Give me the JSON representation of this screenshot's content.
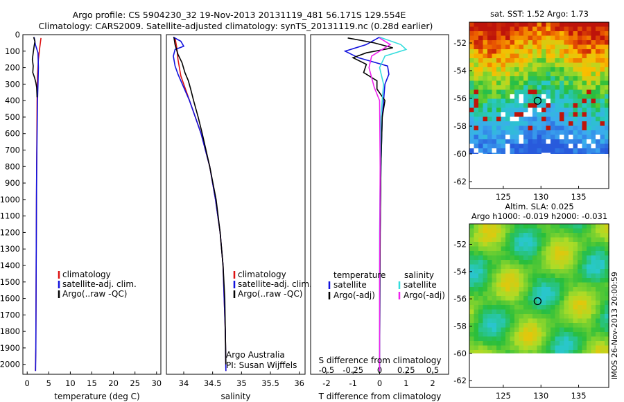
{
  "header": {
    "line1": "Argo profile: CS 5904230_32 19-Nov-2013 20131119_481 56.171S 129.554E",
    "line2": "Climatology: CARS2009. Satellite-adjusted climatology: synTS_20131119.nc (0.28d earlier)"
  },
  "footer": {
    "side_text": "IMOS 26-Nov-2013 20:00:59",
    "argo_australia": "Argo Australia",
    "pi": "PI: Susan Wijffels"
  },
  "colors": {
    "climatology": "#dd1111",
    "satellite": "#1111dd",
    "argo": "#000000",
    "satellite_salinity": "#33dddd",
    "argo_adj_salinity": "#ee22ee"
  },
  "chart_data": [
    {
      "id": "temperature",
      "type": "line",
      "xlabel": "temperature (deg C)",
      "ylabel": "",
      "xlim": [
        -1,
        31
      ],
      "ylim": [
        2060,
        0
      ],
      "xticks": [
        0,
        5,
        10,
        15,
        20,
        25,
        30
      ],
      "yticks": [
        0,
        100,
        200,
        300,
        400,
        500,
        600,
        700,
        800,
        900,
        1000,
        1100,
        1200,
        1300,
        1400,
        1500,
        1600,
        1700,
        1800,
        1900,
        2000
      ],
      "legend": [
        "climatology",
        "satellite-adj. clim.",
        "Argo(..raw -QC)"
      ],
      "series": [
        {
          "name": "climatology",
          "color": "#dd1111",
          "points": [
            [
              3.2,
              20
            ],
            [
              2.9,
              80
            ],
            [
              2.6,
              150
            ],
            [
              2.4,
              250
            ],
            [
              2.3,
              400
            ],
            [
              2.25,
              600
            ],
            [
              2.2,
              800
            ],
            [
              2.15,
              1000
            ],
            [
              2.1,
              1300
            ],
            [
              2.05,
              1600
            ],
            [
              2.0,
              1900
            ],
            [
              1.9,
              2040
            ]
          ]
        },
        {
          "name": "satellite-adj. clim.",
          "color": "#1111dd",
          "points": [
            [
              1.6,
              15
            ],
            [
              1.9,
              60
            ],
            [
              2.5,
              110
            ],
            [
              2.6,
              200
            ],
            [
              2.5,
              300
            ],
            [
              2.4,
              400
            ],
            [
              2.3,
              600
            ],
            [
              2.2,
              800
            ],
            [
              2.15,
              1000
            ],
            [
              2.1,
              1300
            ],
            [
              2.05,
              1600
            ],
            [
              2.0,
              1900
            ],
            [
              1.95,
              2040
            ]
          ]
        },
        {
          "name": "Argo(..raw -QC)",
          "color": "#000000",
          "points": [
            [
              1.5,
              15
            ],
            [
              1.8,
              40
            ],
            [
              1.6,
              70
            ],
            [
              1.4,
              110
            ],
            [
              1.2,
              150
            ],
            [
              1.4,
              190
            ],
            [
              1.3,
              230
            ],
            [
              1.7,
              260
            ],
            [
              2.0,
              290
            ],
            [
              2.2,
              320
            ],
            [
              2.3,
              380
            ]
          ]
        }
      ]
    },
    {
      "id": "salinity",
      "type": "line",
      "xlabel": "salinity",
      "ylabel": "",
      "xlim": [
        33.7,
        36.1
      ],
      "ylim": [
        2060,
        0
      ],
      "xticks": [
        34,
        34.5,
        35,
        35.5,
        36
      ],
      "xticklabels": [
        "34",
        "34.5",
        "35",
        "35.5",
        "36"
      ],
      "legend": [
        "climatology",
        "satellite-adj. clim.",
        "Argo(..raw -QC)"
      ],
      "series": [
        {
          "name": "climatology",
          "color": "#dd1111",
          "points": [
            [
              33.85,
              20
            ],
            [
              33.88,
              80
            ],
            [
              33.9,
              150
            ],
            [
              33.95,
              250
            ],
            [
              34.05,
              350
            ],
            [
              34.15,
              450
            ],
            [
              34.3,
              600
            ],
            [
              34.45,
              800
            ],
            [
              34.55,
              1000
            ],
            [
              34.63,
              1200
            ],
            [
              34.68,
              1400
            ],
            [
              34.7,
              1600
            ],
            [
              34.72,
              1800
            ],
            [
              34.73,
              2040
            ]
          ]
        },
        {
          "name": "satellite-adj. clim.",
          "color": "#1111dd",
          "points": [
            [
              33.82,
              15
            ],
            [
              33.95,
              40
            ],
            [
              34.0,
              70
            ],
            [
              33.85,
              90
            ],
            [
              33.82,
              130
            ],
            [
              33.85,
              190
            ],
            [
              33.9,
              240
            ],
            [
              34.0,
              320
            ],
            [
              34.1,
              400
            ],
            [
              34.2,
              500
            ],
            [
              34.3,
              600
            ],
            [
              34.45,
              800
            ],
            [
              34.55,
              1000
            ],
            [
              34.63,
              1200
            ],
            [
              34.68,
              1400
            ],
            [
              34.7,
              1600
            ],
            [
              34.72,
              1800
            ],
            [
              34.73,
              2040
            ]
          ]
        },
        {
          "name": "Argo(..raw -QC)",
          "color": "#000000",
          "points": [
            [
              33.83,
              15
            ],
            [
              33.85,
              60
            ],
            [
              33.9,
              120
            ],
            [
              33.97,
              170
            ],
            [
              34.02,
              230
            ],
            [
              34.08,
              280
            ],
            [
              34.12,
              330
            ],
            [
              34.17,
              400
            ],
            [
              34.25,
              500
            ],
            [
              34.32,
              600
            ],
            [
              34.45,
              800
            ],
            [
              34.56,
              1000
            ],
            [
              34.63,
              1200
            ],
            [
              34.68,
              1400
            ],
            [
              34.71,
              1600
            ],
            [
              34.72,
              1800
            ],
            [
              34.73,
              2000
            ]
          ]
        }
      ]
    },
    {
      "id": "difference",
      "type": "line",
      "xlabel": "T difference from climatology",
      "top_label": "S difference from climatology",
      "xlim": [
        -2.6,
        2.6
      ],
      "ylim": [
        2060,
        0
      ],
      "xticks": [
        -2,
        -1,
        0,
        1,
        2
      ],
      "top_xticks": [
        -0.5,
        -0.25,
        0,
        0.25,
        0.5
      ],
      "top_xticklabels": [
        "-0.5",
        "-0.25",
        "0",
        "0.25",
        "0.5"
      ],
      "legend_left_title": "temperature",
      "legend_right_title": "salinity",
      "legend_left": [
        "satellite",
        "Argo(-adj)"
      ],
      "legend_right": [
        "satellite",
        "Argo(-adj)"
      ],
      "series": [
        {
          "name": "T satellite",
          "color": "#1111dd",
          "points": [
            [
              0.0,
              15
            ],
            [
              -0.5,
              60
            ],
            [
              -1.3,
              100
            ],
            [
              -0.8,
              140
            ],
            [
              0.3,
              190
            ],
            [
              0.35,
              240
            ],
            [
              0.2,
              300
            ],
            [
              0.1,
              500
            ],
            [
              0.05,
              800
            ],
            [
              0.02,
              1200
            ],
            [
              0.0,
              2040
            ]
          ]
        },
        {
          "name": "T Argo(-adj)",
          "color": "#000000",
          "points": [
            [
              -1.2,
              20
            ],
            [
              -0.2,
              50
            ],
            [
              0.5,
              80
            ],
            [
              -0.5,
              110
            ],
            [
              -1.0,
              140
            ],
            [
              -0.5,
              180
            ],
            [
              -0.6,
              230
            ],
            [
              -0.1,
              280
            ],
            [
              -0.1,
              330
            ],
            [
              0.2,
              400
            ],
            [
              0.1,
              500
            ],
            [
              0.05,
              800
            ],
            [
              0.02,
              1200
            ],
            [
              0.0,
              2040
            ]
          ]
        },
        {
          "name": "S satellite",
          "color": "#33dddd",
          "points": [
            [
              0.0,
              15
            ],
            [
              0.8,
              60
            ],
            [
              1.0,
              90
            ],
            [
              0.2,
              130
            ],
            [
              0.0,
              200
            ],
            [
              0.15,
              300
            ],
            [
              0.05,
              500
            ],
            [
              0.03,
              800
            ],
            [
              0.0,
              1200
            ],
            [
              0.0,
              2040
            ]
          ]
        },
        {
          "name": "S Argo(-adj)",
          "color": "#ee22ee",
          "points": [
            [
              0.0,
              20
            ],
            [
              0.4,
              60
            ],
            [
              -0.3,
              130
            ],
            [
              -0.4,
              200
            ],
            [
              -0.3,
              260
            ],
            [
              -0.2,
              320
            ],
            [
              0.0,
              400
            ],
            [
              0.02,
              800
            ],
            [
              0.0,
              1500
            ],
            [
              0.0,
              2040
            ]
          ]
        }
      ]
    },
    {
      "id": "sst_map",
      "type": "heatmap",
      "title": "sat. SST: 1.52 Argo: 1.73",
      "xlim": [
        120.5,
        139
      ],
      "ylim": [
        -62.5,
        -50.5
      ],
      "xticks": [
        125,
        130,
        135
      ],
      "yticks": [
        -52,
        -54,
        -56,
        -58,
        -60,
        -62
      ],
      "marker": {
        "lon": 129.554,
        "lat": -56.171
      }
    },
    {
      "id": "sla_map",
      "type": "heatmap",
      "title": "Altim. SLA: 0.025",
      "subtitle": "Argo h1000: -0.019 h2000: -0.031",
      "xlim": [
        120.5,
        139
      ],
      "ylim": [
        -62.5,
        -50.5
      ],
      "xticks": [
        125,
        130,
        135
      ],
      "yticks": [
        -52,
        -54,
        -56,
        -58,
        -60,
        -62
      ],
      "marker": {
        "lon": 129.554,
        "lat": -56.171
      }
    }
  ]
}
